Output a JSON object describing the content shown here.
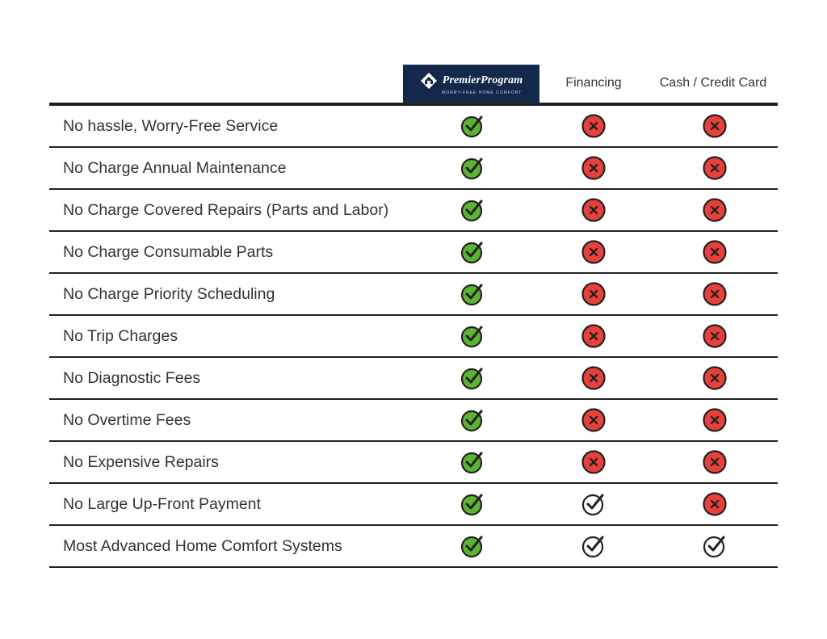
{
  "header": {
    "logo": {
      "title": "PremierProgram",
      "tagline": "WORRY-FREE HOME COMFORT",
      "bg_color": "#14284b"
    },
    "columns": [
      "Financing",
      "Cash / Credit Card"
    ]
  },
  "colors": {
    "check_fill": "#5cb531",
    "cross_fill": "#e8413b",
    "outline": "#222222"
  },
  "rows": [
    {
      "label": "No hassle, Worry-Free Service",
      "premier": "check",
      "financing": "cross",
      "cash": "cross"
    },
    {
      "label": "No Charge Annual Maintenance",
      "premier": "check",
      "financing": "cross",
      "cash": "cross"
    },
    {
      "label": "No Charge Covered Repairs (Parts and Labor)",
      "premier": "check",
      "financing": "cross",
      "cash": "cross"
    },
    {
      "label": "No Charge Consumable Parts",
      "premier": "check",
      "financing": "cross",
      "cash": "cross"
    },
    {
      "label": "No Charge Priority Scheduling",
      "premier": "check",
      "financing": "cross",
      "cash": "cross"
    },
    {
      "label": "No Trip Charges",
      "premier": "check",
      "financing": "cross",
      "cash": "cross"
    },
    {
      "label": "No Diagnostic Fees",
      "premier": "check",
      "financing": "cross",
      "cash": "cross"
    },
    {
      "label": "No Overtime Fees",
      "premier": "check",
      "financing": "cross",
      "cash": "cross"
    },
    {
      "label": "No Expensive Repairs",
      "premier": "check",
      "financing": "cross",
      "cash": "cross"
    },
    {
      "label": "No Large Up-Front Payment",
      "premier": "check",
      "financing": "check-outline",
      "cash": "cross"
    },
    {
      "label": "Most Advanced Home Comfort Systems",
      "premier": "check",
      "financing": "check-outline",
      "cash": "check-outline"
    }
  ]
}
